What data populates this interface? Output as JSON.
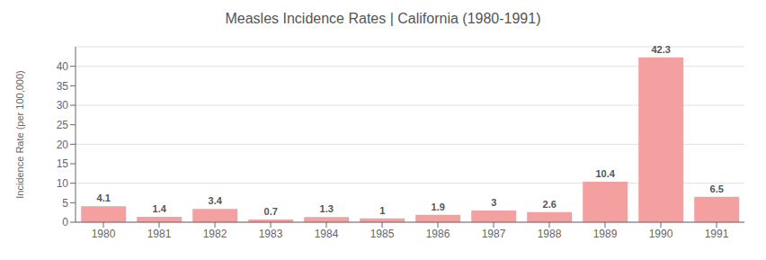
{
  "chart_data": {
    "type": "bar",
    "title": "Measles Incidence Rates | California (1980-1991)",
    "ylabel": "Incidence Rate (per 100,000)",
    "categories": [
      "1980",
      "1981",
      "1982",
      "1983",
      "1984",
      "1985",
      "1986",
      "1987",
      "1988",
      "1989",
      "1990",
      "1991"
    ],
    "values": [
      4.1,
      1.4,
      3.4,
      0.7,
      1.3,
      1.0,
      1.9,
      3.0,
      2.6,
      10.4,
      42.3,
      6.5
    ],
    "color": "#f4a0a0",
    "ylim": [
      0,
      45
    ],
    "yticks": [
      0,
      5,
      10,
      15,
      20,
      25,
      30,
      35,
      40
    ],
    "grid": true,
    "data_labels": true
  }
}
